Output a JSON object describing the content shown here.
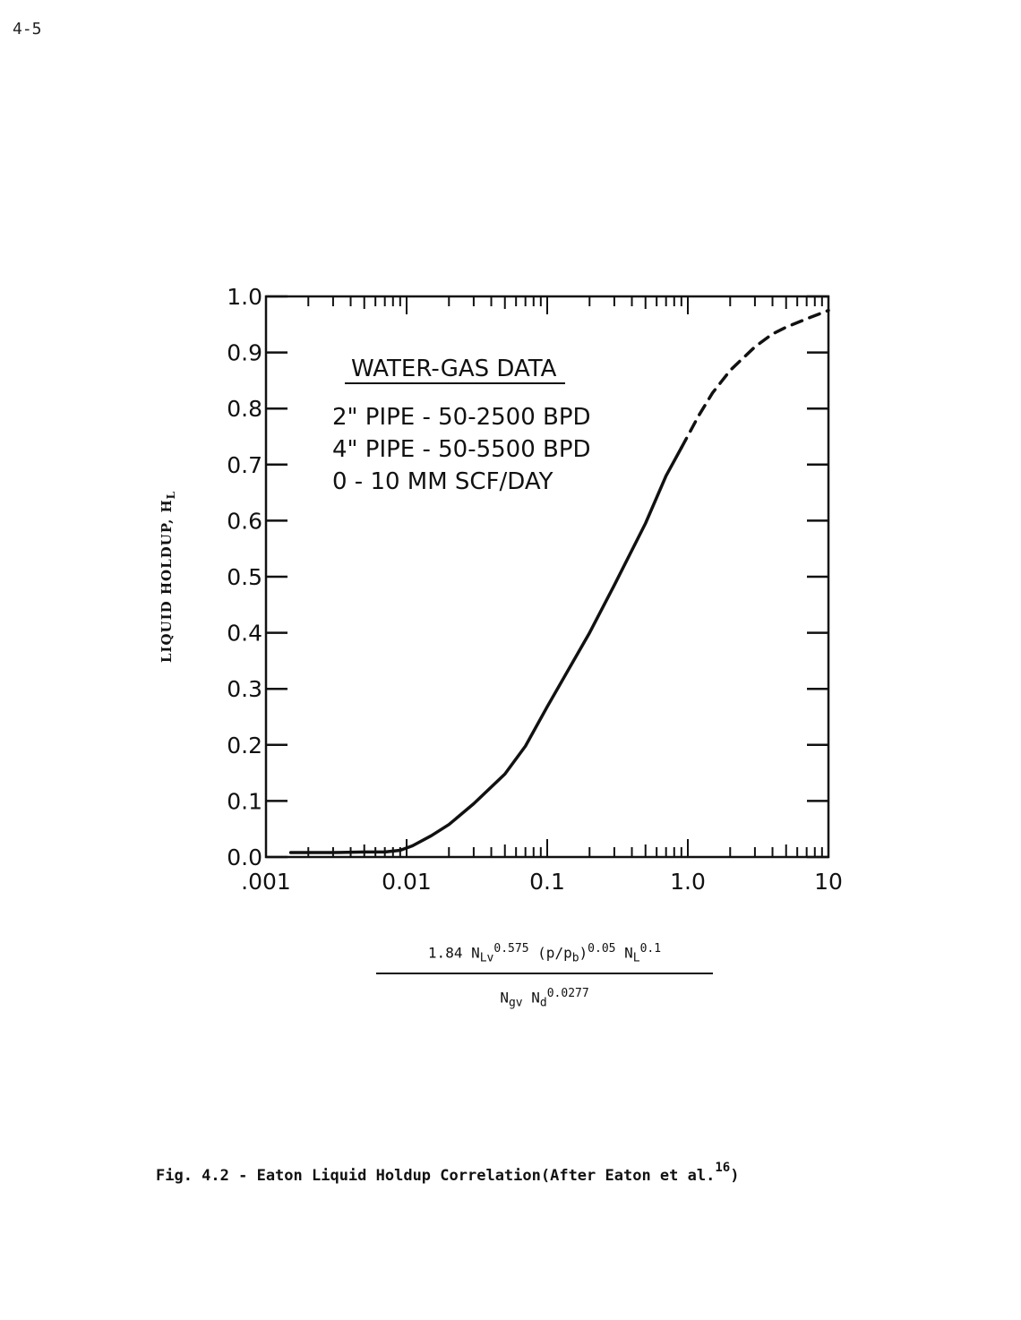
{
  "page": {
    "number": "4-5"
  },
  "chart_data": {
    "type": "line",
    "title": "",
    "xlabel": {
      "numerator": {
        "coef": "1.84",
        "nlv": "N",
        "nlv_sub": "Lv",
        "nlv_exp": "0.575",
        "pratio": "(p/p",
        "pratio_sub": "b",
        "pratio_close": ")",
        "pratio_exp": "0.05",
        "nl": "N",
        "nl_sub": "L",
        "nl_exp": "0.1"
      },
      "denominator": {
        "ngv": "N",
        "ngv_sub": "gv",
        "nd": "N",
        "nd_sub": "d",
        "nd_exp": "0.0277"
      }
    },
    "ylabel": {
      "main": "LIQUID HOLDUP, H",
      "sub": "L"
    },
    "x_scale": "log",
    "xlim": [
      0.001,
      10
    ],
    "ylim": [
      0.0,
      1.0
    ],
    "x_tick_labels": [
      {
        "value": 0.001,
        "label": ".001"
      },
      {
        "value": 0.01,
        "label": "0.01"
      },
      {
        "value": 0.1,
        "label": "0.1"
      },
      {
        "value": 1.0,
        "label": "1.0"
      },
      {
        "value": 10,
        "label": "10"
      }
    ],
    "y_tick_labels": [
      {
        "value": 0.0,
        "label": "0.0"
      },
      {
        "value": 0.1,
        "label": "0.1"
      },
      {
        "value": 0.2,
        "label": "0.2"
      },
      {
        "value": 0.3,
        "label": "0.3"
      },
      {
        "value": 0.4,
        "label": "0.4"
      },
      {
        "value": 0.5,
        "label": "0.5"
      },
      {
        "value": 0.6,
        "label": "0.6"
      },
      {
        "value": 0.7,
        "label": "0.7"
      },
      {
        "value": 0.8,
        "label": "0.8"
      },
      {
        "value": 0.9,
        "label": "0.9"
      },
      {
        "value": 1.0,
        "label": "1.0"
      }
    ],
    "grid": false,
    "legend": {
      "title": "WATER-GAS DATA",
      "lines": [
        "2\" PIPE - 50-2500 BPD",
        "4\" PIPE - 50-5500 BPD",
        "0 - 10 MM SCF/DAY"
      ]
    },
    "series": [
      {
        "style": "solid",
        "x": [
          0.0015,
          0.003,
          0.005,
          0.007,
          0.009,
          0.011,
          0.015,
          0.02,
          0.03,
          0.05,
          0.07,
          0.1,
          0.15,
          0.2,
          0.3,
          0.5,
          0.7,
          0.9
        ],
        "y": [
          0.008,
          0.008,
          0.009,
          0.009,
          0.012,
          0.02,
          0.038,
          0.058,
          0.095,
          0.148,
          0.198,
          0.268,
          0.345,
          0.4,
          0.485,
          0.595,
          0.68,
          0.73
        ]
      },
      {
        "style": "dashed",
        "x": [
          0.9,
          1.2,
          1.5,
          2,
          3,
          4,
          5,
          7,
          10
        ],
        "y": [
          0.73,
          0.788,
          0.828,
          0.868,
          0.91,
          0.933,
          0.945,
          0.96,
          0.975
        ]
      }
    ]
  },
  "caption": {
    "text": "Fig. 4.2 - Eaton Liquid Holdup Correlation(After Eaton et al.",
    "ref": "16",
    "close": ")"
  }
}
